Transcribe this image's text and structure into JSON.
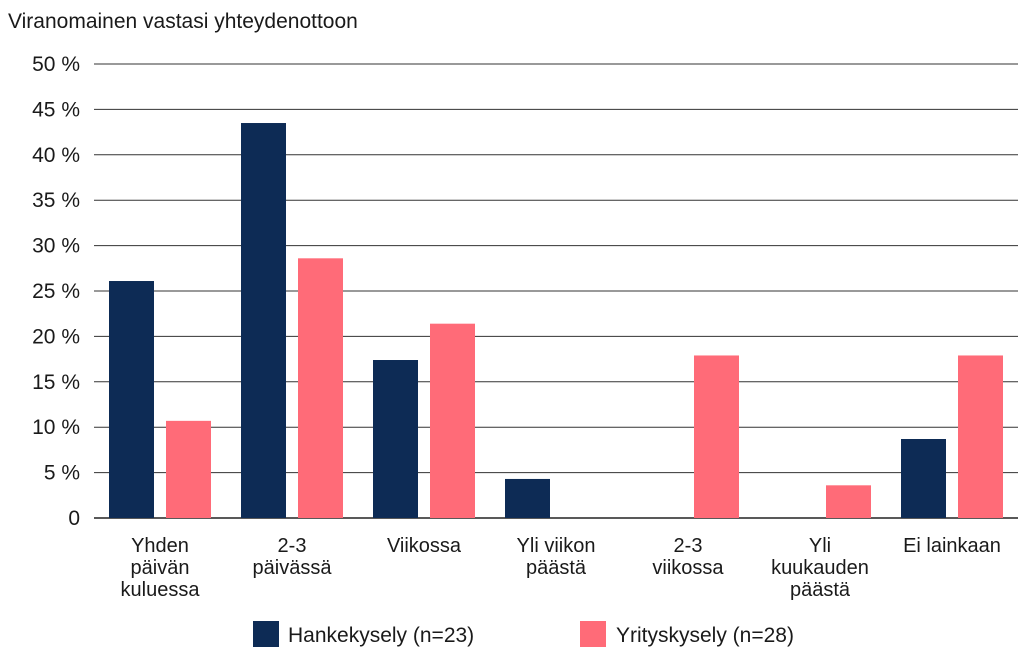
{
  "chart_data": {
    "type": "bar",
    "title": "Viranomainen vastasi yhteydenottoon",
    "ylim": [
      0,
      50
    ],
    "yticks": [
      0,
      5,
      10,
      15,
      20,
      25,
      30,
      35,
      40,
      45,
      50
    ],
    "ytick_labels": [
      "0",
      "5 %",
      "10 %",
      "15 %",
      "20 %",
      "25 %",
      "30 %",
      "35 %",
      "40 %",
      "45 %",
      "50 %"
    ],
    "grid": true,
    "legend": "bottom",
    "categories": [
      [
        "Yhden",
        "päivän",
        "kuluessa"
      ],
      [
        "2-3",
        "päivässä"
      ],
      [
        "Viikossa"
      ],
      [
        "Yli viikon",
        "päästä"
      ],
      [
        "2-3",
        "viikossa"
      ],
      [
        "Yli",
        "kuukauden",
        "päästä"
      ],
      [
        "Ei lainkaan"
      ]
    ],
    "series": [
      {
        "name": "Hankekysely (n=23)",
        "color": "#0d2b55",
        "values": [
          26.1,
          43.5,
          17.4,
          4.3,
          0,
          0,
          8.7
        ]
      },
      {
        "name": "Yrityskysely (n=28)",
        "color": "#ff6b78",
        "values": [
          10.7,
          28.6,
          21.4,
          0,
          17.9,
          3.6,
          17.9
        ]
      }
    ]
  }
}
